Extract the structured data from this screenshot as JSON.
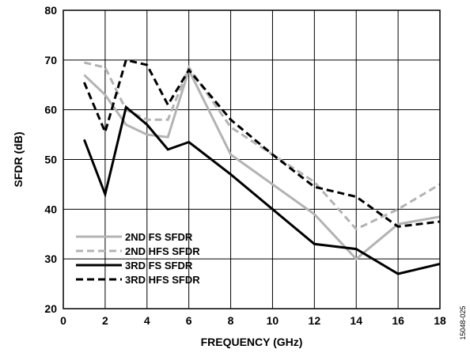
{
  "chart_data": {
    "type": "line",
    "title": "",
    "xlabel": "FREQUENCY (GHz)",
    "ylabel": "SFDR (dB)",
    "xlim": [
      0,
      18
    ],
    "ylim": [
      20,
      80
    ],
    "xticks": [
      0,
      2,
      4,
      6,
      8,
      10,
      12,
      14,
      16,
      18
    ],
    "yticks": [
      20,
      30,
      40,
      50,
      60,
      70,
      80
    ],
    "grid": true,
    "legend_position": "bottom-left",
    "series": [
      {
        "name": "2ND FS SFDR",
        "color": "#b3b3b3",
        "dashed": false,
        "x": [
          1,
          2,
          3,
          4,
          5,
          6,
          8,
          10,
          12,
          14,
          16,
          18
        ],
        "y": [
          67,
          63,
          57,
          55,
          54.5,
          68,
          51,
          45,
          39,
          30,
          37,
          38.5
        ]
      },
      {
        "name": "2ND HFS SFDR",
        "color": "#b3b3b3",
        "dashed": true,
        "x": [
          1,
          2,
          3,
          4,
          5,
          6,
          8,
          10,
          12,
          14,
          16,
          18
        ],
        "y": [
          69.5,
          68.5,
          60,
          58,
          58,
          68.5,
          56.5,
          51,
          45.5,
          36,
          40,
          45
        ]
      },
      {
        "name": "3RD FS SFDR",
        "color": "#000000",
        "dashed": false,
        "x": [
          1,
          2,
          3,
          4,
          5,
          6,
          8,
          10,
          12,
          14,
          16,
          18
        ],
        "y": [
          54,
          43,
          60.5,
          57,
          52,
          53.5,
          47,
          40,
          33,
          32,
          27,
          29
        ]
      },
      {
        "name": "3RD HFS SFDR",
        "color": "#000000",
        "dashed": true,
        "x": [
          1,
          2,
          3,
          4,
          5,
          6,
          8,
          10,
          12,
          14,
          16,
          18
        ],
        "y": [
          65.5,
          55.5,
          70,
          69,
          61,
          68,
          58,
          51,
          44.5,
          42.5,
          36.5,
          37.5
        ]
      }
    ]
  },
  "figure_id": "15048-025"
}
